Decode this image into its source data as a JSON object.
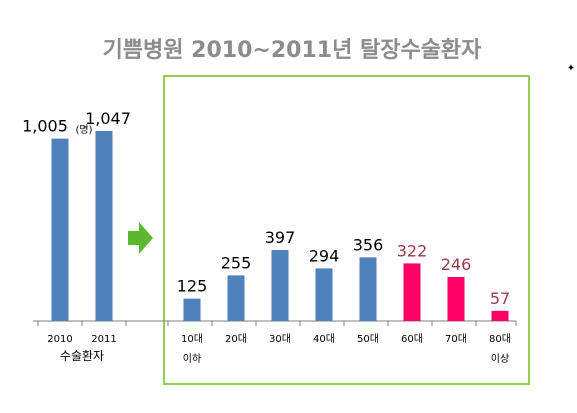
{
  "chart_data": {
    "type": "bar",
    "title": "기쁨병원 2010~2011년 탈장수술환자",
    "ylim": [
      0,
      1100
    ],
    "grid": false,
    "legend": "none",
    "colors": {
      "title_text": "#8c8c8c",
      "bar_blue": "#4f81bd",
      "bar_pink": "#ff0066",
      "label_dark": "#000000",
      "label_red": "#9b3a4b",
      "box_green": "#92d050",
      "arrow_green": "#5cb82e",
      "axis": "#7f7f7f"
    },
    "groups": [
      {
        "label": "수술환자",
        "unit_note": "(명)",
        "categories": [
          "2010",
          "2011"
        ],
        "values": [
          1005,
          1047
        ],
        "value_labels": [
          "1,005",
          "1,047"
        ]
      },
      {
        "categories": [
          "10대\n이하",
          "20대",
          "30대",
          "40대",
          "50대",
          "60대",
          "70대",
          "80대\n이상"
        ],
        "values": [
          125,
          255,
          397,
          294,
          356,
          322,
          246,
          57
        ],
        "value_labels": [
          "125",
          "255",
          "397",
          "294",
          "356",
          "322",
          "246",
          "57"
        ],
        "highlight": [
          false,
          false,
          false,
          false,
          false,
          true,
          true,
          true
        ]
      }
    ]
  }
}
